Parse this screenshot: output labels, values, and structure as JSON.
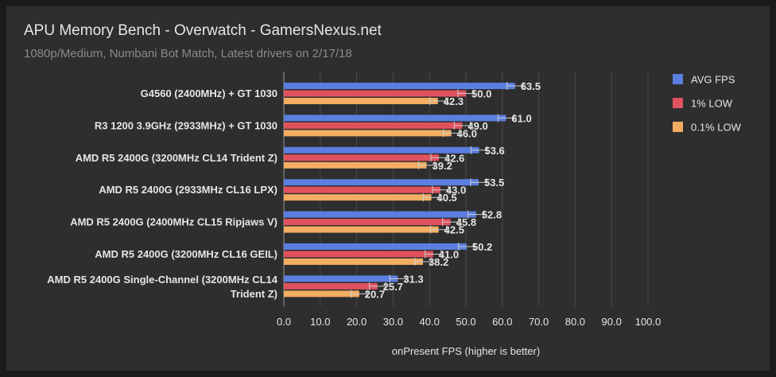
{
  "colors": {
    "background": "#2e2e2e",
    "avg": "#5b7fe0",
    "low1": "#e0525e",
    "low01": "#f4ad62",
    "grid": "#4a4a4a",
    "text": "#e6e6e6",
    "subtext": "#8a8a8a"
  },
  "chart_data": {
    "type": "bar",
    "orientation": "horizontal",
    "title": "APU Memory Bench - Overwatch - GamersNexus.net",
    "subtitle": "1080p/Medium, Numbani Bot Match, Latest drivers on 2/17/18",
    "xlabel": "onPresent FPS (higher is better)",
    "xlim": [
      0,
      100
    ],
    "x_ticks": [
      "0.0",
      "10.0",
      "20.0",
      "30.0",
      "40.0",
      "50.0",
      "60.0",
      "70.0",
      "80.0",
      "90.0",
      "100.0"
    ],
    "grid": true,
    "legend_position": "right",
    "error_bars": true,
    "categories": [
      "G4560 (2400MHz) + GT 1030",
      "R3 1200 3.9GHz (2933MHz) + GT 1030",
      "AMD R5 2400G (3200MHz CL14 Trident Z)",
      "AMD R5 2400G (2933MHz CL16 LPX)",
      "AMD R5 2400G (2400MHz CL15 Ripjaws V)",
      "AMD R5 2400G (3200MHz CL16 GEIL)",
      "AMD R5 2400G Single-Channel (3200MHz CL14 Trident Z)"
    ],
    "category_lines": [
      [
        "G4560 (2400MHz) + GT 1030"
      ],
      [
        "R3 1200 3.9GHz (2933MHz) + GT 1030"
      ],
      [
        "AMD R5 2400G (3200MHz CL14 Trident Z)"
      ],
      [
        "AMD R5 2400G (2933MHz CL16 LPX)"
      ],
      [
        "AMD R5 2400G (2400MHz CL15 Ripjaws V)"
      ],
      [
        "AMD R5 2400G (3200MHz CL16 GEIL)"
      ],
      [
        "AMD R5 2400G Single-Channel (3200MHz CL14",
        "Trident Z)"
      ]
    ],
    "series": [
      {
        "name": "AVG FPS",
        "values": [
          63.5,
          61.0,
          53.6,
          53.5,
          52.8,
          50.2,
          31.3
        ],
        "labels": [
          "63.5",
          "61.0",
          "53.6",
          "53.5",
          "52.8",
          "50.2",
          "31.3"
        ]
      },
      {
        "name": "1% LOW",
        "values": [
          50.0,
          49.0,
          42.6,
          43.0,
          45.8,
          41.0,
          25.7
        ],
        "labels": [
          "50.0",
          "49.0",
          "42.6",
          "43.0",
          "45.8",
          "41.0",
          "25.7"
        ]
      },
      {
        "name": "0.1% LOW",
        "values": [
          42.3,
          46.0,
          39.2,
          40.5,
          42.5,
          38.2,
          20.7
        ],
        "labels": [
          "42.3",
          "46.0",
          "39.2",
          "40.5",
          "42.5",
          "38.2",
          "20.7"
        ]
      }
    ]
  }
}
